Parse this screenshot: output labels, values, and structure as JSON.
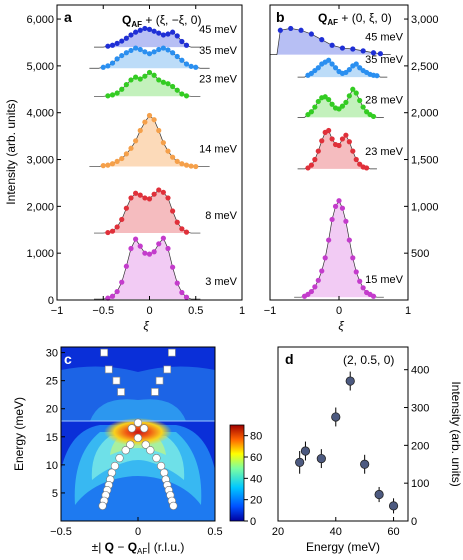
{
  "colors": {
    "p45": "#1f2fd6",
    "p45_fill": "#aab4f2",
    "p35": "#2a8ff0",
    "p35_fill": "#b0d6f7",
    "p23": "#33cc22",
    "p23_fill": "#b9eeb0",
    "p14": "#f5a04a",
    "p14_fill": "#fbd4ad",
    "p8": "#e0303a",
    "p8_fill": "#f3b0b4",
    "p3": "#c43ccc",
    "p3_fill": "#f0c2f2",
    "p15": "#c43ccc",
    "p15_fill": "#f0c2f2",
    "pd_marker": "#4d5a80"
  },
  "chart_data": [
    {
      "panel": "a",
      "type": "scatter",
      "title": "Q_AF + (ξ, −ξ, 0)",
      "xlabel": "ξ",
      "ylabel": "Intensity (arb. units)",
      "xlim": [
        -1,
        1
      ],
      "ylim": [
        0,
        6300
      ],
      "xticks": [
        "−1",
        "−0.5",
        "0",
        "0.5",
        "1"
      ],
      "xtick_values": [
        -1,
        -0.5,
        0,
        0.5,
        1
      ],
      "yticks": [
        "0",
        "1,000",
        "2,000",
        "3,000",
        "4,000",
        "5,000",
        "6,000"
      ],
      "ytick_values": [
        0,
        1000,
        2000,
        3000,
        4000,
        5000,
        6000
      ],
      "series": [
        {
          "name": "45 meV",
          "color_key": "p45",
          "baseline": 5400,
          "x": [
            -0.45,
            -0.4,
            -0.35,
            -0.3,
            -0.25,
            -0.2,
            -0.15,
            -0.1,
            -0.05,
            0,
            0.05,
            0.1,
            0.15,
            0.2,
            0.25,
            0.3,
            0.35,
            0.4
          ],
          "y": [
            5420,
            5440,
            5480,
            5530,
            5590,
            5660,
            5720,
            5760,
            5800,
            5780,
            5740,
            5700,
            5660,
            5680,
            5720,
            5640,
            5520,
            5440
          ]
        },
        {
          "name": "35 meV",
          "color_key": "p35",
          "baseline": 4950,
          "x": [
            -0.5,
            -0.45,
            -0.4,
            -0.35,
            -0.3,
            -0.25,
            -0.2,
            -0.15,
            -0.1,
            -0.05,
            0,
            0.05,
            0.1,
            0.15,
            0.2,
            0.25,
            0.3,
            0.35,
            0.4,
            0.45,
            0.5
          ],
          "y": [
            4970,
            5000,
            5060,
            5150,
            5220,
            5280,
            5330,
            5380,
            5350,
            5300,
            5260,
            5300,
            5350,
            5380,
            5340,
            5280,
            5200,
            5120,
            5040,
            4990,
            4970
          ]
        },
        {
          "name": "23 meV",
          "color_key": "p23",
          "baseline": 4350,
          "x": [
            -0.45,
            -0.4,
            -0.35,
            -0.3,
            -0.25,
            -0.2,
            -0.15,
            -0.1,
            -0.05,
            0,
            0.05,
            0.1,
            0.15,
            0.2,
            0.25,
            0.3,
            0.35,
            0.4
          ],
          "y": [
            4360,
            4380,
            4420,
            4500,
            4600,
            4700,
            4760,
            4720,
            4780,
            4860,
            4800,
            4700,
            4650,
            4620,
            4560,
            4480,
            4400,
            4360
          ]
        },
        {
          "name": "14 meV",
          "color_key": "p14",
          "baseline": 2850,
          "x": [
            -0.5,
            -0.45,
            -0.4,
            -0.35,
            -0.3,
            -0.25,
            -0.2,
            -0.15,
            -0.1,
            -0.05,
            0,
            0.05,
            0.1,
            0.15,
            0.2,
            0.25,
            0.3,
            0.35,
            0.4,
            0.45,
            0.5
          ],
          "y": [
            2870,
            2880,
            2910,
            2960,
            3020,
            3120,
            3240,
            3400,
            3620,
            3800,
            3940,
            3850,
            3620,
            3360,
            3180,
            3050,
            2960,
            2910,
            2880,
            2860,
            2850
          ]
        },
        {
          "name": "8 meV",
          "color_key": "p8",
          "baseline": 1430,
          "x": [
            -0.45,
            -0.4,
            -0.35,
            -0.3,
            -0.25,
            -0.2,
            -0.15,
            -0.1,
            -0.05,
            0,
            0.05,
            0.1,
            0.15,
            0.2,
            0.25,
            0.3,
            0.35,
            0.4
          ],
          "y": [
            1440,
            1470,
            1560,
            1720,
            1960,
            2180,
            2280,
            2240,
            2180,
            2160,
            2260,
            2350,
            2300,
            2180,
            1900,
            1660,
            1520,
            1450
          ]
        },
        {
          "name": "3 meV",
          "color_key": "p3",
          "baseline": 20,
          "x": [
            -0.45,
            -0.4,
            -0.35,
            -0.3,
            -0.25,
            -0.2,
            -0.15,
            -0.1,
            -0.05,
            0,
            0.05,
            0.1,
            0.15,
            0.2,
            0.25,
            0.3,
            0.35,
            0.4
          ],
          "y": [
            40,
            80,
            180,
            380,
            720,
            1100,
            1300,
            1150,
            1000,
            980,
            1030,
            1200,
            1320,
            1100,
            700,
            360,
            160,
            60
          ]
        }
      ]
    },
    {
      "panel": "b",
      "type": "scatter",
      "title": "Q_AF + (0, ξ, 0)",
      "xlabel": "ξ",
      "ylabel": "",
      "xlim": [
        -1,
        1
      ],
      "ylim": [
        0,
        3150
      ],
      "xticks": [
        "−1",
        "0",
        "1"
      ],
      "xtick_values": [
        -1,
        0,
        1
      ],
      "yticks": [
        "500",
        "1,000",
        "1,500",
        "2,000",
        "2,500",
        "3,000"
      ],
      "ytick_values": [
        500,
        1000,
        1500,
        2000,
        2500,
        3000
      ],
      "series": [
        {
          "name": "45 meV",
          "color_key": "p45",
          "baseline": 2620,
          "x": [
            -0.85,
            -0.7,
            -0.55,
            -0.4,
            -0.25,
            -0.1,
            0.05,
            0.2,
            0.35,
            0.5,
            0.6
          ],
          "y": [
            2880,
            2900,
            2880,
            2840,
            2780,
            2720,
            2690,
            2680,
            2660,
            2640,
            2630
          ]
        },
        {
          "name": "35 meV",
          "color_key": "p35",
          "baseline": 2380,
          "x": [
            -0.45,
            -0.4,
            -0.35,
            -0.3,
            -0.25,
            -0.2,
            -0.15,
            -0.1,
            -0.05,
            0,
            0.05,
            0.1,
            0.15,
            0.2,
            0.25,
            0.3,
            0.35,
            0.4,
            0.45,
            0.5,
            0.55
          ],
          "y": [
            2400,
            2420,
            2450,
            2480,
            2520,
            2540,
            2560,
            2520,
            2480,
            2440,
            2420,
            2430,
            2460,
            2500,
            2520,
            2480,
            2450,
            2430,
            2410,
            2400,
            2395
          ]
        },
        {
          "name": "28 meV",
          "color_key": "p28",
          "baseline": 1950,
          "x": [
            -0.45,
            -0.4,
            -0.35,
            -0.3,
            -0.25,
            -0.2,
            -0.15,
            -0.1,
            -0.05,
            0,
            0.05,
            0.1,
            0.15,
            0.2,
            0.25,
            0.3,
            0.35,
            0.4,
            0.45,
            0.5
          ],
          "y": [
            1980,
            2010,
            2060,
            2120,
            2160,
            2170,
            2140,
            2090,
            2050,
            2040,
            2070,
            2110,
            2180,
            2250,
            2210,
            2130,
            2060,
            2010,
            1980,
            1960
          ]
        },
        {
          "name": "23 meV",
          "color_key": "p23b",
          "baseline": 1400,
          "x": [
            -0.45,
            -0.4,
            -0.35,
            -0.3,
            -0.25,
            -0.2,
            -0.15,
            -0.1,
            -0.05,
            0,
            0.05,
            0.1,
            0.15,
            0.2,
            0.25,
            0.3,
            0.35,
            0.4
          ],
          "y": [
            1410,
            1440,
            1500,
            1590,
            1700,
            1790,
            1810,
            1720,
            1660,
            1650,
            1720,
            1760,
            1690,
            1590,
            1500,
            1450,
            1420,
            1410
          ]
        },
        {
          "name": "15 meV",
          "color_key": "p15",
          "baseline": 30,
          "x": [
            -0.5,
            -0.45,
            -0.4,
            -0.35,
            -0.3,
            -0.25,
            -0.2,
            -0.15,
            -0.1,
            -0.05,
            0,
            0.05,
            0.1,
            0.15,
            0.2,
            0.25,
            0.3,
            0.35,
            0.4,
            0.45,
            0.5
          ],
          "y": [
            40,
            60,
            90,
            140,
            210,
            310,
            450,
            640,
            860,
            1000,
            1060,
            980,
            840,
            640,
            450,
            300,
            200,
            130,
            80,
            60,
            40
          ]
        }
      ]
    },
    {
      "panel": "c",
      "type": "heatmap",
      "xlabel": "±| Q − Q_AF | (r.l.u.)",
      "ylabel": "Energy (meV)",
      "xlim": [
        -0.5,
        0.5
      ],
      "ylim": [
        0,
        31
      ],
      "xticks": [
        "−0.5",
        "0",
        "0.5"
      ],
      "xtick_values": [
        -0.5,
        0,
        0.5
      ],
      "yticks": [
        "5",
        "10",
        "15",
        "20",
        "25",
        "30"
      ],
      "ytick_values": [
        5,
        10,
        15,
        20,
        25,
        30
      ],
      "colorbar_ticks": [
        "0",
        "20",
        "40",
        "60",
        "80"
      ],
      "colorbar_values": [
        0,
        20,
        40,
        60,
        80
      ],
      "colorbar_range": [
        0,
        90
      ],
      "resonance_energy": 16,
      "squares": [
        {
          "x": -0.22,
          "y": 30
        },
        {
          "x": 0.22,
          "y": 30
        },
        {
          "x": -0.19,
          "y": 27
        },
        {
          "x": 0.19,
          "y": 27
        },
        {
          "x": -0.14,
          "y": 25
        },
        {
          "x": 0.14,
          "y": 25
        },
        {
          "x": -0.11,
          "y": 23
        },
        {
          "x": 0.11,
          "y": 23
        }
      ],
      "circles": [
        {
          "x": 0.0,
          "y": 17.5
        },
        {
          "x": -0.04,
          "y": 16.5
        },
        {
          "x": 0.04,
          "y": 16.5
        },
        {
          "x": 0.0,
          "y": 14.8
        },
        {
          "x": -0.05,
          "y": 13.6
        },
        {
          "x": 0.05,
          "y": 13.6
        },
        {
          "x": -0.08,
          "y": 12.6
        },
        {
          "x": 0.08,
          "y": 12.6
        },
        {
          "x": -0.12,
          "y": 11.2
        },
        {
          "x": 0.12,
          "y": 11.2
        },
        {
          "x": -0.15,
          "y": 9.8
        },
        {
          "x": 0.15,
          "y": 9.8
        },
        {
          "x": -0.17,
          "y": 8.6
        },
        {
          "x": 0.17,
          "y": 8.6
        },
        {
          "x": -0.18,
          "y": 7.4
        },
        {
          "x": 0.18,
          "y": 7.4
        },
        {
          "x": -0.19,
          "y": 6.4
        },
        {
          "x": 0.19,
          "y": 6.4
        },
        {
          "x": -0.2,
          "y": 5.5
        },
        {
          "x": 0.2,
          "y": 5.5
        },
        {
          "x": -0.21,
          "y": 4.6
        },
        {
          "x": 0.21,
          "y": 4.6
        },
        {
          "x": -0.22,
          "y": 3.6
        },
        {
          "x": 0.22,
          "y": 3.6
        },
        {
          "x": -0.23,
          "y": 2.7
        },
        {
          "x": 0.23,
          "y": 2.7
        }
      ]
    },
    {
      "panel": "d",
      "type": "scatter",
      "title": "(2, 0.5, 0)",
      "xlabel": "Energy (meV)",
      "ylabel": "Intensity (arb. units)",
      "xlim": [
        20,
        65
      ],
      "ylim": [
        0,
        460
      ],
      "xticks": [
        "20",
        "40",
        "60"
      ],
      "xtick_values": [
        20,
        40,
        60
      ],
      "yticks": [
        "0",
        "100",
        "200",
        "300",
        "400"
      ],
      "ytick_values": [
        0,
        100,
        200,
        300,
        400
      ],
      "x": [
        27.5,
        29.5,
        35,
        40,
        45,
        50,
        55,
        60
      ],
      "y": [
        155,
        185,
        165,
        275,
        370,
        150,
        70,
        40
      ],
      "err": [
        30,
        25,
        25,
        25,
        25,
        25,
        20,
        20
      ]
    }
  ],
  "labels": {
    "panel_a": "a",
    "panel_b": "b",
    "panel_c": "c",
    "panel_d": "d",
    "a_title_Q": "Q",
    "a_title_sub": "AF",
    "a_title_rest": " + (ξ, −ξ, 0)",
    "b_title_Q": "Q",
    "b_title_sub": "AF",
    "b_title_rest": " + (0, ξ, 0)",
    "a_xlabel": "ξ",
    "b_xlabel": "ξ",
    "a_ylabel": "Intensity (arb. units)",
    "c_ylabel": "Energy (meV)",
    "c_xlabel_pre": "±| ",
    "c_xlabel_Q": "Q",
    "c_xlabel_mid": " − ",
    "c_xlabel_Q2": "Q",
    "c_xlabel_sub": "AF",
    "c_xlabel_post": "| (r.l.u.)",
    "d_title": "(2, 0.5, 0)",
    "d_xlabel": "Energy (meV)",
    "d_ylabel": "Intensity (arb. units)"
  }
}
